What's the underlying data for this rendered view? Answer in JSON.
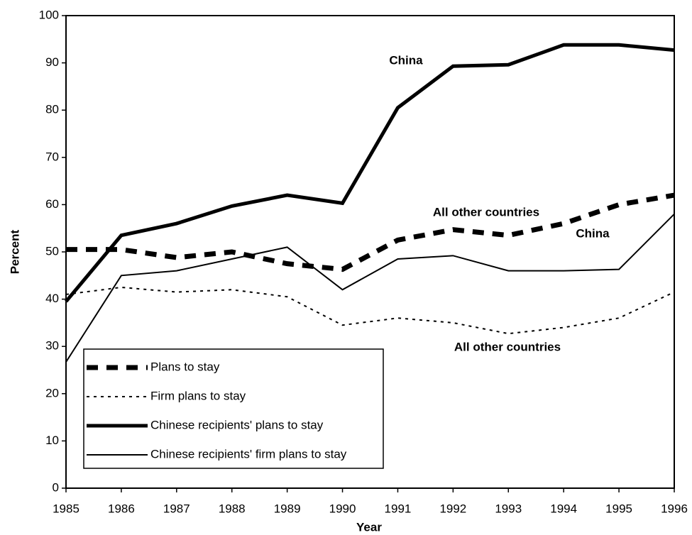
{
  "chart_data": {
    "type": "line",
    "x_label": "Year",
    "y_label": "Percent",
    "x": [
      1985,
      1986,
      1987,
      1988,
      1989,
      1990,
      1991,
      1992,
      1993,
      1994,
      1995,
      1996
    ],
    "xlim": [
      1985,
      1996
    ],
    "xticks": [
      1985,
      1986,
      1987,
      1988,
      1989,
      1990,
      1991,
      1992,
      1993,
      1994,
      1995,
      1996
    ],
    "ylim": [
      0,
      100
    ],
    "yticks": [
      0,
      10,
      20,
      30,
      40,
      50,
      60,
      70,
      80,
      90,
      100
    ],
    "series": [
      {
        "name": "Plans to stay",
        "color": "#000000",
        "style": "dashed",
        "width": 7,
        "values": [
          50.5,
          50.5,
          48.8,
          50,
          47.5,
          46.3,
          52.5,
          54.7,
          53.5,
          56,
          60,
          62
        ]
      },
      {
        "name": "Firm plans to stay",
        "color": "#000000",
        "style": "dotted",
        "width": 2,
        "values": [
          41,
          42.5,
          41.5,
          42,
          40.5,
          34.5,
          36,
          35,
          32.7,
          34,
          36,
          41.5
        ]
      },
      {
        "name": "Chinese recipients' plans to stay",
        "color": "#000000",
        "style": "solid",
        "width": 5,
        "values": [
          39.5,
          53.5,
          56,
          59.7,
          62,
          60.3,
          80.5,
          89.3,
          89.6,
          93.8,
          93.8,
          92.7
        ]
      },
      {
        "name": "Chinese recipients' firm plans to stay",
        "color": "#000000",
        "style": "solid",
        "width": 2,
        "values": [
          26.7,
          45,
          46,
          48.5,
          51,
          42,
          48.5,
          49.2,
          46,
          46,
          46.3,
          58
        ]
      }
    ],
    "annotations": [
      "China",
      "All other countries",
      "China",
      "All other countries"
    ]
  }
}
